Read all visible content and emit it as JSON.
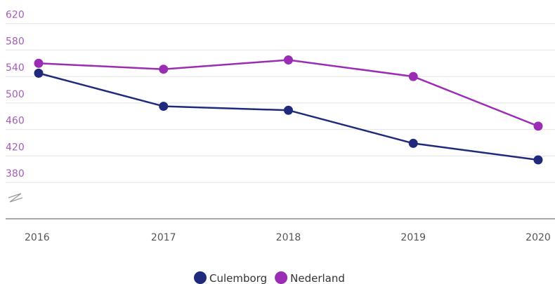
{
  "chart_data": {
    "type": "line",
    "categories": [
      "2016",
      "2017",
      "2018",
      "2019",
      "2020"
    ],
    "series": [
      {
        "name": "Culemborg",
        "color": "#1f2a7c",
        "values": [
          545,
          495,
          489,
          439,
          414
        ]
      },
      {
        "name": "Nederland",
        "color": "#9b2db4",
        "values": [
          560,
          551,
          565,
          540,
          465
        ]
      }
    ],
    "ylim": [
      325,
      645
    ],
    "yticks": [
      380,
      420,
      460,
      500,
      540,
      580,
      620
    ],
    "grid": true
  }
}
